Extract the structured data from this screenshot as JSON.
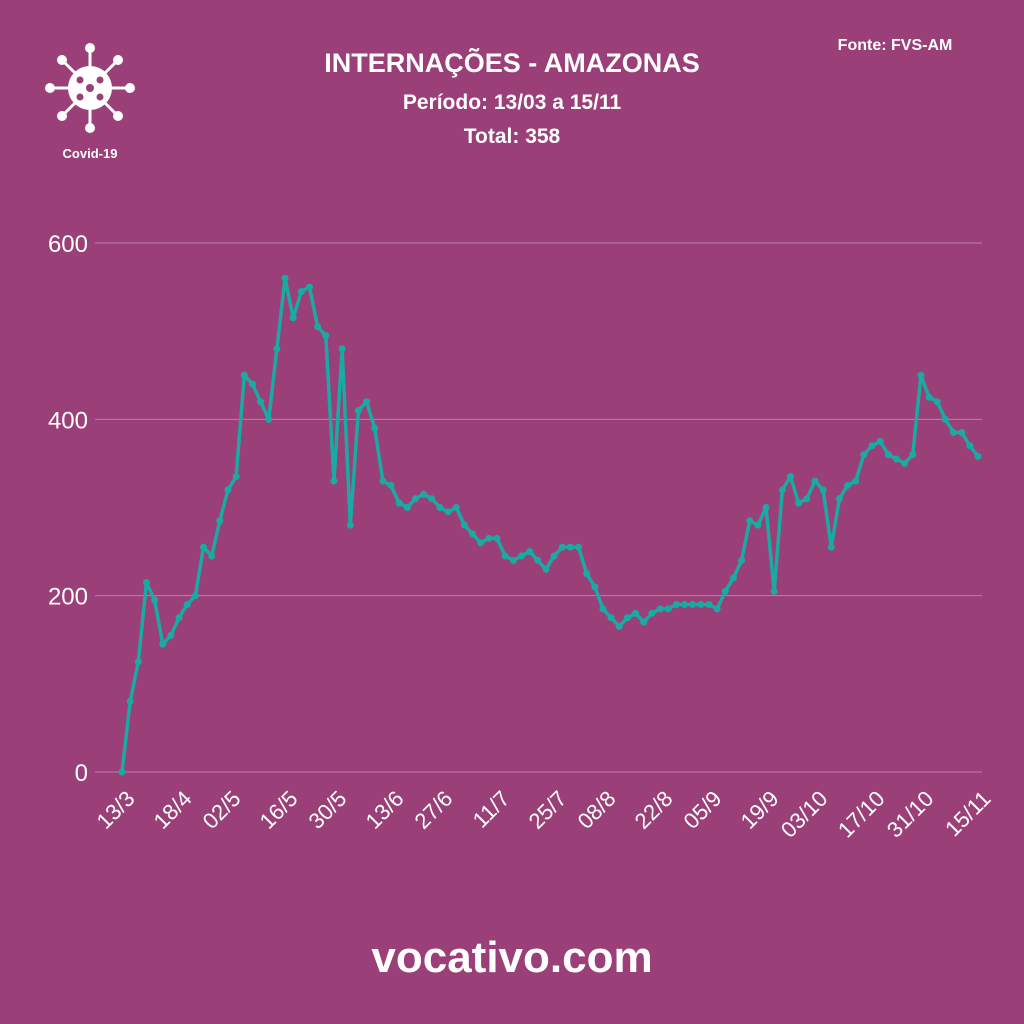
{
  "chart_data": {
    "type": "line",
    "title": "INTERNAÇÕES - AMAZONAS",
    "subtitle": "Período: 13/03 a 15/11",
    "total": "Total: 358",
    "source": "Fonte: FVS-AM",
    "badge": "Covid-19",
    "footer": "vocativo.com",
    "color": "#19aba1",
    "grid": true,
    "categories": [
      "13/3",
      null,
      null,
      null,
      null,
      null,
      null,
      "18/4",
      null,
      null,
      null,
      null,
      null,
      "02/5",
      null,
      null,
      null,
      null,
      null,
      null,
      "16/5",
      null,
      null,
      null,
      null,
      null,
      "30/5",
      null,
      null,
      null,
      null,
      null,
      null,
      "13/6",
      null,
      null,
      null,
      null,
      null,
      "27/6",
      null,
      null,
      null,
      null,
      null,
      null,
      "11/7",
      null,
      null,
      null,
      null,
      null,
      null,
      "25/7",
      null,
      null,
      null,
      null,
      null,
      "08/8",
      null,
      null,
      null,
      null,
      null,
      null,
      "22/8",
      null,
      null,
      null,
      null,
      null,
      "05/9",
      null,
      null,
      null,
      null,
      null,
      null,
      "19/9",
      null,
      null,
      null,
      null,
      null,
      "03/10",
      null,
      null,
      null,
      null,
      null,
      null,
      "17/10",
      null,
      null,
      null,
      null,
      null,
      "31/10",
      null,
      null,
      null,
      null,
      null,
      null,
      "15/11"
    ],
    "values": [
      0,
      80,
      125,
      215,
      195,
      145,
      155,
      175,
      190,
      200,
      255,
      245,
      285,
      320,
      335,
      450,
      440,
      420,
      400,
      480,
      560,
      515,
      545,
      550,
      505,
      495,
      330,
      480,
      280,
      410,
      420,
      390,
      330,
      325,
      305,
      300,
      310,
      315,
      310,
      300,
      295,
      300,
      280,
      270,
      260,
      265,
      265,
      245,
      240,
      245,
      250,
      240,
      230,
      245,
      255,
      255,
      255,
      225,
      210,
      185,
      175,
      165,
      175,
      180,
      170,
      180,
      185,
      185,
      190,
      190,
      190,
      190,
      190,
      185,
      205,
      220,
      240,
      285,
      280,
      300,
      205,
      320,
      335,
      305,
      310,
      330,
      320,
      255,
      310,
      325,
      330,
      360,
      370,
      375,
      360,
      355,
      350,
      360,
      450,
      425,
      420,
      400,
      385,
      385,
      370,
      358
    ],
    "ylim": [
      0,
      600
    ],
    "yticks": [
      0,
      200,
      400,
      600
    ]
  }
}
